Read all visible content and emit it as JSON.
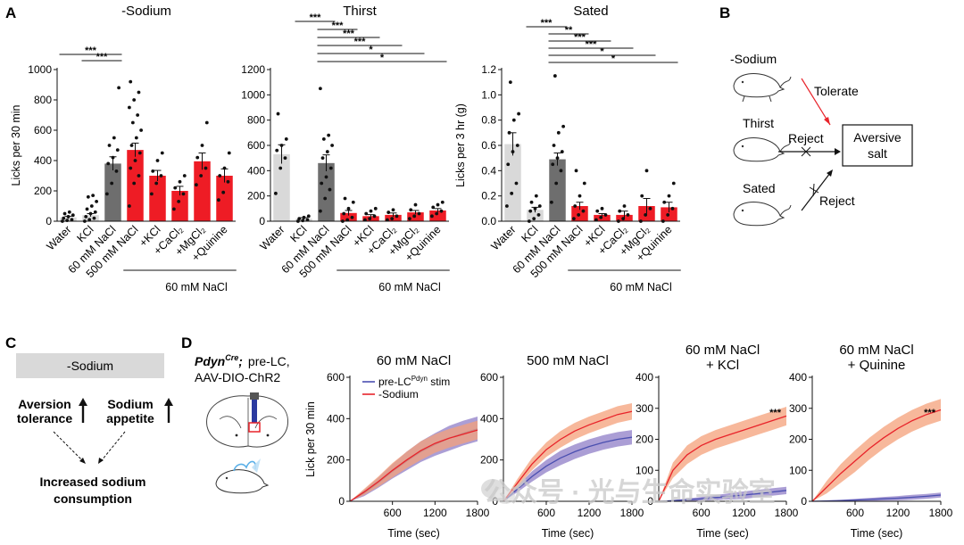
{
  "panels": {
    "A": "A",
    "B": "B",
    "C": "C",
    "D": "D"
  },
  "group_label": "60 mM NaCl",
  "chart_data": [
    {
      "id": "sodium",
      "type": "bar",
      "title": "-Sodium",
      "ylabel": "Licks per 30 min",
      "ylim": [
        0,
        1000
      ],
      "yticks": [
        0,
        200,
        400,
        600,
        800,
        1000
      ],
      "categories": [
        "Water",
        "KCl",
        "60 mM NaCl",
        "500 mM NaCl",
        "+KCl",
        "+CaCl₂",
        "+MgCl₂",
        "+Quinine"
      ],
      "values": [
        25,
        40,
        380,
        470,
        300,
        200,
        395,
        300
      ],
      "errors": [
        8,
        10,
        45,
        45,
        35,
        30,
        55,
        45
      ],
      "colors": [
        "#d9d9d9",
        "#d9d9d9",
        "#6e6e6e",
        "#ee1c25",
        "#ee1c25",
        "#ee1c25",
        "#ee1c25",
        "#ee1c25"
      ],
      "points": [
        [
          0,
          5,
          10,
          20,
          30,
          40,
          50,
          60
        ],
        [
          0,
          10,
          20,
          30,
          50,
          60,
          80,
          100,
          130,
          160,
          170
        ],
        [
          180,
          250,
          330,
          380,
          420,
          470,
          500,
          550,
          880
        ],
        [
          100,
          250,
          300,
          350,
          400,
          450,
          500,
          550,
          600,
          650,
          700,
          750,
          800,
          850,
          920
        ],
        [
          180,
          250,
          300,
          330,
          400,
          450
        ],
        [
          80,
          130,
          180,
          220,
          260,
          300
        ],
        [
          240,
          300,
          350,
          420,
          500,
          650
        ],
        [
          140,
          190,
          260,
          300,
          350,
          450
        ]
      ],
      "significance": [
        {
          "from": 0,
          "to": 2,
          "label": "***"
        },
        {
          "from": 1,
          "to": 2,
          "label": "***"
        }
      ]
    },
    {
      "id": "thirst",
      "type": "bar",
      "title": "Thirst",
      "ylabel": "",
      "ylim": [
        0,
        1200
      ],
      "yticks": [
        0,
        200,
        400,
        600,
        800,
        1000,
        1200
      ],
      "categories": [
        "Water",
        "KCl",
        "60 mM NaCl",
        "500 mM NaCl",
        "+KCl",
        "+CaCl₂",
        "+MgCl₂",
        "+Quinine"
      ],
      "values": [
        530,
        20,
        460,
        65,
        40,
        50,
        70,
        85
      ],
      "errors": [
        75,
        8,
        65,
        20,
        12,
        15,
        15,
        15
      ],
      "colors": [
        "#d9d9d9",
        "#d9d9d9",
        "#6e6e6e",
        "#ee1c25",
        "#ee1c25",
        "#ee1c25",
        "#ee1c25",
        "#ee1c25"
      ],
      "points": [
        [
          220,
          420,
          500,
          560,
          600,
          650,
          850
        ],
        [
          0,
          5,
          10,
          20,
          30,
          40
        ],
        [
          80,
          180,
          250,
          300,
          350,
          420,
          500,
          550,
          600,
          650,
          680,
          1050
        ],
        [
          0,
          10,
          30,
          60,
          100,
          150,
          180
        ],
        [
          10,
          20,
          40,
          60,
          80,
          100
        ],
        [
          10,
          20,
          40,
          70,
          90
        ],
        [
          20,
          40,
          60,
          90,
          130
        ],
        [
          40,
          60,
          80,
          110,
          130,
          150
        ]
      ],
      "significance": [
        {
          "from": 1,
          "to": 2,
          "label": "***"
        },
        {
          "from": 2,
          "to": 3,
          "label": "***"
        },
        {
          "from": 2,
          "to": 4,
          "label": "***"
        },
        {
          "from": 2,
          "to": 5,
          "label": "***"
        },
        {
          "from": 2,
          "to": 6,
          "label": "*"
        },
        {
          "from": 2,
          "to": 7,
          "label": "*"
        }
      ]
    },
    {
      "id": "sated",
      "type": "bar",
      "title": "Sated",
      "ylabel": "Licks per 3 hr (g)",
      "ylim": [
        0,
        1.2
      ],
      "yticks": [
        0.0,
        0.2,
        0.4,
        0.6,
        0.8,
        1.0,
        1.2
      ],
      "tick_format": "fixed1",
      "categories": [
        "Water",
        "KCl",
        "60 mM NaCl",
        "500 mM NaCl",
        "+KCl",
        "+CaCl₂",
        "+MgCl₂",
        "+Quinine"
      ],
      "values": [
        0.61,
        0.09,
        0.49,
        0.12,
        0.05,
        0.05,
        0.12,
        0.11
      ],
      "errors": [
        0.09,
        0.02,
        0.05,
        0.03,
        0.01,
        0.03,
        0.06,
        0.04
      ],
      "colors": [
        "#d9d9d9",
        "#d9d9d9",
        "#6e6e6e",
        "#ee1c25",
        "#ee1c25",
        "#ee1c25",
        "#ee1c25",
        "#ee1c25"
      ],
      "points": [
        [
          0.12,
          0.22,
          0.3,
          0.45,
          0.55,
          0.6,
          0.7,
          0.8,
          0.85,
          1.1
        ],
        [
          0.0,
          0.02,
          0.05,
          0.08,
          0.1,
          0.12,
          0.15,
          0.2
        ],
        [
          0.15,
          0.3,
          0.4,
          0.45,
          0.5,
          0.55,
          0.6,
          0.7,
          0.75,
          1.15
        ],
        [
          0.02,
          0.05,
          0.08,
          0.12,
          0.2,
          0.3,
          0.4
        ],
        [
          0.01,
          0.03,
          0.05,
          0.08,
          0.1
        ],
        [
          0.0,
          0.02,
          0.05,
          0.08,
          0.12
        ],
        [
          0.0,
          0.05,
          0.1,
          0.2,
          0.4
        ],
        [
          0.0,
          0.05,
          0.1,
          0.15,
          0.2,
          0.3
        ]
      ],
      "significance": [
        {
          "from": 1,
          "to": 2,
          "label": "***"
        },
        {
          "from": 2,
          "to": 3,
          "label": "**"
        },
        {
          "from": 2,
          "to": 4,
          "label": "***"
        },
        {
          "from": 2,
          "to": 5,
          "label": "***"
        },
        {
          "from": 2,
          "to": 6,
          "label": "*"
        },
        {
          "from": 2,
          "to": 7,
          "label": "*"
        }
      ]
    },
    {
      "id": "d1",
      "type": "line",
      "title_lines": [
        "60 mM NaCl"
      ],
      "ylabel": "Lick per 30 min",
      "xlabel": "Time (sec)",
      "xlim": [
        0,
        1800
      ],
      "xticks": [
        600,
        1200,
        1800
      ],
      "ylim": [
        0,
        600
      ],
      "yticks": [
        0,
        200,
        400,
        600
      ],
      "legend": [
        "pre-LC",
        "Pdyn",
        " stim",
        "-Sodium"
      ],
      "series": [
        {
          "name": "pre-LCPdyn stim",
          "color": "#4a4fb0",
          "fill": "#8f7dc7",
          "x": [
            0,
            200,
            400,
            600,
            800,
            1000,
            1200,
            1400,
            1600,
            1800
          ],
          "y": [
            0,
            40,
            90,
            145,
            195,
            240,
            275,
            305,
            330,
            350
          ],
          "err": [
            0,
            15,
            25,
            35,
            45,
            50,
            55,
            60,
            60,
            60
          ]
        },
        {
          "name": "-Sodium",
          "color": "#e8232a",
          "fill": "#f4a07a",
          "x": [
            0,
            200,
            400,
            600,
            800,
            1000,
            1200,
            1400,
            1600,
            1800
          ],
          "y": [
            0,
            45,
            95,
            150,
            200,
            245,
            280,
            305,
            325,
            345
          ],
          "err": [
            0,
            15,
            25,
            35,
            40,
            45,
            45,
            45,
            45,
            45
          ]
        }
      ]
    },
    {
      "id": "d2",
      "type": "line",
      "title_lines": [
        "500 mM NaCl"
      ],
      "ylabel": "",
      "xlabel": "Time (sec)",
      "xlim": [
        0,
        1800
      ],
      "xticks": [
        600,
        1200,
        1800
      ],
      "ylim": [
        0,
        600
      ],
      "yticks": [
        0,
        200,
        400,
        600
      ],
      "series": [
        {
          "name": "pre-LCPdyn stim",
          "color": "#4a4fb0",
          "fill": "#8f7dc7",
          "x": [
            0,
            200,
            400,
            600,
            800,
            1000,
            1200,
            1400,
            1600,
            1800
          ],
          "y": [
            0,
            60,
            120,
            170,
            210,
            240,
            265,
            285,
            300,
            310
          ],
          "err": [
            0,
            15,
            25,
            30,
            35,
            35,
            35,
            35,
            35,
            35
          ]
        },
        {
          "name": "-Sodium",
          "color": "#e8232a",
          "fill": "#f4a07a",
          "x": [
            0,
            200,
            400,
            600,
            800,
            1000,
            1200,
            1400,
            1600,
            1800
          ],
          "y": [
            0,
            90,
            180,
            250,
            300,
            340,
            370,
            395,
            420,
            435
          ],
          "err": [
            0,
            20,
            30,
            35,
            40,
            40,
            40,
            40,
            40,
            40
          ]
        }
      ]
    },
    {
      "id": "d3",
      "type": "line",
      "title_lines": [
        "60 mM NaCl",
        "+ KCl"
      ],
      "ylabel": "",
      "xlabel": "Time (sec)",
      "xlim": [
        0,
        1800
      ],
      "xticks": [
        600,
        1200,
        1800
      ],
      "ylim": [
        0,
        400
      ],
      "yticks": [
        0,
        100,
        200,
        300,
        400
      ],
      "annotation": "***",
      "series": [
        {
          "name": "pre-LCPdyn stim",
          "color": "#4a4fb0",
          "fill": "#8f7dc7",
          "x": [
            0,
            200,
            400,
            600,
            800,
            1000,
            1200,
            1400,
            1600,
            1800
          ],
          "y": [
            0,
            2,
            5,
            8,
            12,
            16,
            20,
            25,
            30,
            35
          ],
          "err": [
            0,
            2,
            4,
            6,
            8,
            10,
            12,
            12,
            12,
            12
          ]
        },
        {
          "name": "-Sodium",
          "color": "#e8232a",
          "fill": "#f4a07a",
          "x": [
            0,
            200,
            400,
            600,
            800,
            1000,
            1200,
            1400,
            1600,
            1800
          ],
          "y": [
            0,
            100,
            150,
            180,
            200,
            215,
            230,
            245,
            260,
            275
          ],
          "err": [
            0,
            25,
            30,
            30,
            30,
            30,
            30,
            30,
            30,
            30
          ]
        }
      ]
    },
    {
      "id": "d4",
      "type": "line",
      "title_lines": [
        "60 mM NaCl",
        "+ Quinine"
      ],
      "ylabel": "",
      "xlabel": "Time (sec)",
      "xlim": [
        0,
        1800
      ],
      "xticks": [
        600,
        1200,
        1800
      ],
      "ylim": [
        0,
        400
      ],
      "yticks": [
        0,
        100,
        200,
        300,
        400
      ],
      "annotation": "***",
      "series": [
        {
          "name": "pre-LCPdyn stim",
          "color": "#4a4fb0",
          "fill": "#8f7dc7",
          "x": [
            0,
            200,
            400,
            600,
            800,
            1000,
            1200,
            1400,
            1600,
            1800
          ],
          "y": [
            0,
            1,
            2,
            4,
            6,
            8,
            10,
            13,
            16,
            20
          ],
          "err": [
            0,
            2,
            3,
            4,
            5,
            6,
            7,
            8,
            8,
            8
          ]
        },
        {
          "name": "-Sodium",
          "color": "#e8232a",
          "fill": "#f4a07a",
          "x": [
            0,
            200,
            400,
            600,
            800,
            1000,
            1200,
            1400,
            1600,
            1800
          ],
          "y": [
            0,
            45,
            90,
            130,
            170,
            205,
            235,
            260,
            280,
            295
          ],
          "err": [
            0,
            20,
            30,
            35,
            35,
            35,
            35,
            35,
            35,
            35
          ]
        }
      ]
    }
  ],
  "panel_b": {
    "sodium": "-Sodium",
    "thirst": "Thirst",
    "sated": "Sated",
    "tolerate": "Tolerate",
    "reject1": "Reject",
    "reject2": "Reject",
    "box_line1": "Aversive",
    "box_line2": "salt"
  },
  "panel_c": {
    "header": "-Sodium",
    "left_line1": "Aversion",
    "left_line2": "tolerance",
    "right_line1": "Sodium",
    "right_line2": "appetite",
    "bottom_line1": "Increased sodium",
    "bottom_line2": "consumption"
  },
  "panel_d": {
    "gene": "Pdyn",
    "gene_sup": "Cre",
    "gene_suffix": ";",
    "line1_rest": "pre-LC,",
    "line2": "AAV-DIO-ChR2"
  },
  "watermark": "公众号 · 光与生命实验室",
  "colors": {
    "red": "#ee1c25",
    "gray": "#6e6e6e",
    "light_gray": "#d9d9d9",
    "header_bg": "#d9d9d9",
    "blue": "#3a3fa8"
  }
}
